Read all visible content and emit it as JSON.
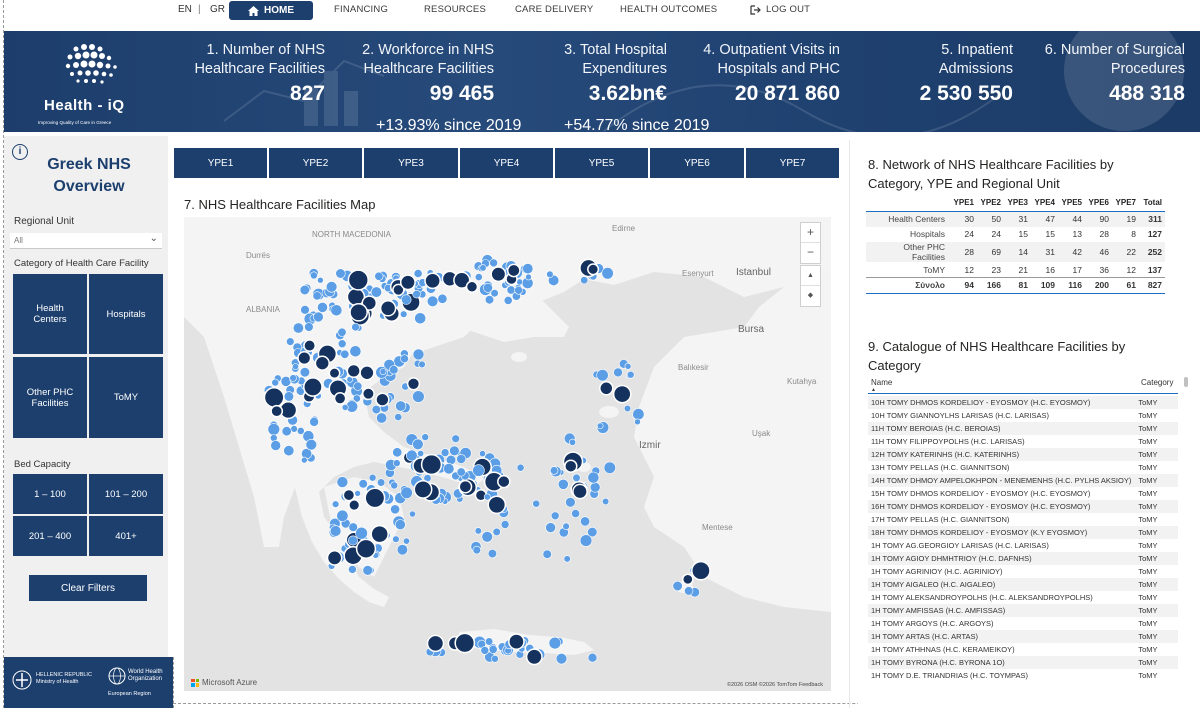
{
  "nav": {
    "lang_en": "EN",
    "lang_sep": "|",
    "lang_gr": "GR",
    "home": "HOME",
    "financing": "FINANCING",
    "resources": "RESOURCES",
    "care_delivery": "CARE DELIVERY",
    "health_outcomes": "HEALTH OUTCOMES",
    "logout": "LOG OUT"
  },
  "brand": {
    "name": "Health - iQ",
    "tagline": "Improving Quality of Care in Greece"
  },
  "kpis": [
    {
      "label_1": "1. Number of NHS",
      "label_2": "Healthcare Facilities",
      "value": "827",
      "change": ""
    },
    {
      "label_1": "2. Workforce in NHS",
      "label_2": "Healthcare Facilities",
      "value": "99 465",
      "change": "+13.93% since 2019"
    },
    {
      "label_1": "3. Total Hospital",
      "label_2": "Expenditures",
      "value": "3.62bn€",
      "change": "+54.77% since 2019"
    },
    {
      "label_1": "4. Outpatient Visits in",
      "label_2": "Hospitals and PHC",
      "value": "20 871 860",
      "change": ""
    },
    {
      "label_1": "5. Inpatient",
      "label_2": "Admissions",
      "value": "2 530 550",
      "change": ""
    },
    {
      "label_1": "6. Number of Surgical",
      "label_2": "Procedures",
      "value": "488 318",
      "change": ""
    }
  ],
  "filters": {
    "info": "i",
    "title_1": "Greek NHS",
    "title_2": "Overview",
    "regional_unit_label": "Regional Unit",
    "regional_unit_value": "All",
    "category_label": "Category of Health Care Facility",
    "categories": [
      "Health Centers",
      "Hospitals",
      "Other PHC Facilities",
      "ToMY"
    ],
    "bed_label": "Bed Capacity",
    "beds": [
      "1 – 100",
      "101 – 200",
      "201 – 400",
      "401+"
    ],
    "clear": "Clear Filters"
  },
  "footer": {
    "hr_1": "HELLENIC REPUBLIC",
    "hr_2": "Ministry of Health",
    "who_1": "World Health",
    "who_2": "Organization",
    "who_3": "European Region"
  },
  "ype_buttons": [
    "YPE1",
    "YPE2",
    "YPE3",
    "YPE4",
    "YPE5",
    "YPE6",
    "YPE7"
  ],
  "map": {
    "title": "7. NHS Healthcare Facilities Map",
    "labels": [
      "NORTH MACEDONIA",
      "ALBANIA",
      "Durrës",
      "Edirne",
      "Esenyurt",
      "Istanbul",
      "Bursa",
      "Balıkesir",
      "Kutahya",
      "Izmir",
      "Mentese",
      "Uşak"
    ],
    "attribution": "©2026 OSM  ©2026 TomTom  Feedback",
    "provider": "Microsoft Azure",
    "controls": [
      "+",
      "−",
      "▲",
      "◆"
    ]
  },
  "network_table": {
    "title_1": "8. Network of NHS Healthcare Facilities by",
    "title_2": "Category, YPE and Regional Unit",
    "columns": [
      "",
      "YPE1",
      "YPE2",
      "YPE3",
      "YPE4",
      "YPE5",
      "YPE6",
      "YPE7",
      "Total"
    ],
    "rows": [
      [
        "Health Centers",
        "30",
        "50",
        "31",
        "47",
        "44",
        "90",
        "19",
        "311"
      ],
      [
        "Hospitals",
        "24",
        "24",
        "15",
        "15",
        "13",
        "28",
        "8",
        "127"
      ],
      [
        "Other PHC Facilities",
        "28",
        "69",
        "14",
        "31",
        "42",
        "46",
        "22",
        "252"
      ],
      [
        "ToMY",
        "12",
        "23",
        "21",
        "16",
        "17",
        "36",
        "12",
        "137"
      ]
    ],
    "total_row": [
      "Σύνολο",
      "94",
      "166",
      "81",
      "109",
      "116",
      "200",
      "61",
      "827"
    ]
  },
  "catalogue": {
    "title_1": "9. Catalogue of NHS Healthcare Facilities by",
    "title_2": "Category",
    "col_name": "Name",
    "col_category": "Category",
    "rows": [
      [
        "10H TOMY DHMOS KORDELIOY - EYOSMOY (H.C. EYOSMOY)",
        "ToMY"
      ],
      [
        "10H TOMY GIANNOYLHS LARISAS (H.C. LARISAS)",
        "ToMY"
      ],
      [
        "11H TOMY BEROIAS (H.C. BEROIAS)",
        "ToMY"
      ],
      [
        "11H TOMY FILIPPOYPOLHS (H.C. LARISAS)",
        "ToMY"
      ],
      [
        "12H TOMY KATERINHS (H.C. KATERINHS)",
        "ToMY"
      ],
      [
        "13H TOMY PELLAS (H.C. GIANNITSON)",
        "ToMY"
      ],
      [
        "14H TOMY DHMOY AMPELOKHPON - MENEMENHS (H.C. PYLHS AKSIOY)",
        "ToMY"
      ],
      [
        "15H TOMY DHMOS KORDELIOY - EYOSMOY (H.C. EYOSMOY)",
        "ToMY"
      ],
      [
        "16H TOMY DHMOS KORDELIOY - EYOSMOY (H.C. EYOSMOY)",
        "ToMY"
      ],
      [
        "17H TOMY PELLAS (H.C. GIANNITSON)",
        "ToMY"
      ],
      [
        "18H TOMY DHMOS KORDELIOY - EYOSMOY (K.Y EYOSMOY)",
        "ToMY"
      ],
      [
        "1H TOMY AG.GEORGIOY LARISAS (H.C. LARISAS)",
        "ToMY"
      ],
      [
        "1H TOMY AGIOY DHMHTRIOY (H.C. DAFNHS)",
        "ToMY"
      ],
      [
        "1H TOMY AGRINIOY (H.C. AGRINIOY)",
        "ToMY"
      ],
      [
        "1H TOMY AIGALEO (H.C. AIGALEO)",
        "ToMY"
      ],
      [
        "1H TOMY ALEKSANDROYPOLHS (H.C. ALEKSANDROYPOLHS)",
        "ToMY"
      ],
      [
        "1H TOMY AMFISSAS (H.C. AMFISSAS)",
        "ToMY"
      ],
      [
        "1H TOMY ARGOYS (H.C. ARGOYS)",
        "ToMY"
      ],
      [
        "1H TOMY ARTAS (H.C. ARTAS)",
        "ToMY"
      ],
      [
        "1H TOMY ATHHNAS (H.C. KERAMEIKOY)",
        "ToMY"
      ],
      [
        "1H TOMY BYRONA (H.C. BYRONA 1O)",
        "ToMY"
      ],
      [
        "1H TOMY D.E. TRIANDRIAS (H.C. TOYMPAS)",
        "ToMY"
      ]
    ]
  },
  "colors": {
    "navy": "#1c3f6e",
    "accent_blue": "#1c6fc2",
    "marker_light": "#5b9ee6",
    "marker_dark": "#15325e"
  }
}
